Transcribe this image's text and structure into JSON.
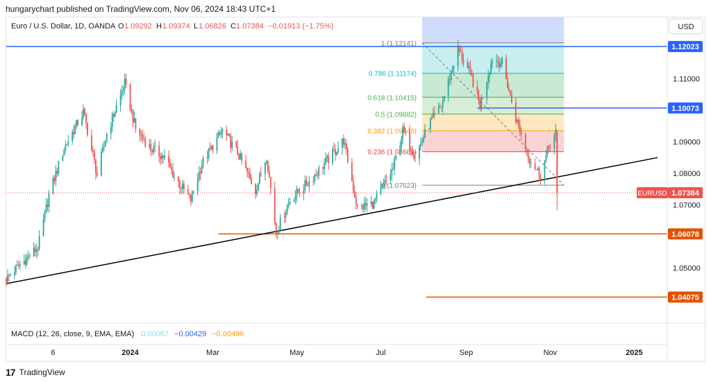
{
  "header": {
    "published": "hungarychart published on TradingView.com, Nov 06, 2024 18:43 UTC+1"
  },
  "legend": {
    "symbol": "Euro / U.S. Dollar, 1D, OANDA",
    "o_label": "O",
    "o": "1.09292",
    "h_label": "H",
    "h": "1.09374",
    "l_label": "L",
    "l": "1.06826",
    "c_label": "C",
    "c": "1.07384",
    "change": "−0.01913 (−1.75%)"
  },
  "currency_button": "USD",
  "macd": {
    "label": "MACD (12, 26, close, 9, EMA, EMA)",
    "v1": "0.00067",
    "v2": "−0.00429",
    "v3": "−0.00496",
    "colors": [
      "#80deea",
      "#2962ff",
      "#ff9800"
    ]
  },
  "footer": {
    "brand": "TradingView",
    "logo": "17"
  },
  "colors": {
    "up": "#26a69a",
    "down": "#ef5350",
    "blue_line": "#2962ff",
    "orange_line": "#e65100",
    "trend_line": "#000000",
    "price_line": "#ef5350"
  },
  "chart_data": {
    "type": "candlestick",
    "title": "Euro / U.S. Dollar, 1D, OANDA",
    "ylim": [
      1.0325,
      1.1295
    ],
    "y_ticks": [
      "1.11000",
      "1.10000",
      "1.09000",
      "1.08000",
      "1.07000",
      "1.05000"
    ],
    "x_ticks": [
      "6",
      "2024",
      "Mar",
      "May",
      "Jul",
      "Sep",
      "Nov",
      "2025"
    ],
    "x_tick_dates": [
      "2023-11-06",
      "2024-01-01",
      "2024-03-01",
      "2024-05-01",
      "2024-07-01",
      "2024-09-01",
      "2024-11-01",
      "2025-01-01"
    ],
    "x_range": [
      "2023-10-03",
      "2025-01-25"
    ],
    "last_date": "2024-11-06",
    "price_close_anchors": [
      [
        "2023-10-03",
        1.0465
      ],
      [
        "2023-10-13",
        1.051
      ],
      [
        "2023-10-26",
        1.0565
      ],
      [
        "2023-11-03",
        1.073
      ],
      [
        "2023-11-14",
        1.088
      ],
      [
        "2023-11-28",
        1.0995
      ],
      [
        "2023-12-08",
        1.0795
      ],
      [
        "2023-12-15",
        1.0925
      ],
      [
        "2023-12-28",
        1.1085
      ],
      [
        "2024-01-05",
        1.094
      ],
      [
        "2024-01-16",
        1.088
      ],
      [
        "2024-01-26",
        1.085
      ],
      [
        "2024-02-02",
        1.079
      ],
      [
        "2024-02-14",
        1.0715
      ],
      [
        "2024-02-22",
        1.083
      ],
      [
        "2024-03-08",
        1.0935
      ],
      [
        "2024-03-19",
        1.0865
      ],
      [
        "2024-04-01",
        1.0745
      ],
      [
        "2024-04-09",
        1.0855
      ],
      [
        "2024-04-16",
        1.0615
      ],
      [
        "2024-04-26",
        1.0715
      ],
      [
        "2024-05-10",
        1.0775
      ],
      [
        "2024-05-24",
        1.0845
      ],
      [
        "2024-06-04",
        1.0905
      ],
      [
        "2024-06-14",
        1.069
      ],
      [
        "2024-06-26",
        1.0705
      ],
      [
        "2024-07-10",
        1.0815
      ],
      [
        "2024-07-17",
        1.0935
      ],
      [
        "2024-07-26",
        1.0855
      ],
      [
        "2024-08-05",
        1.0955
      ],
      [
        "2024-08-14",
        1.1015
      ],
      [
        "2024-08-26",
        1.1195
      ],
      [
        "2024-09-05",
        1.1105
      ],
      [
        "2024-09-11",
        1.1015
      ],
      [
        "2024-09-20",
        1.1165
      ],
      [
        "2024-09-27",
        1.115
      ],
      [
        "2024-10-07",
        1.0975
      ],
      [
        "2024-10-17",
        1.0845
      ],
      [
        "2024-10-25",
        1.0795
      ],
      [
        "2024-10-31",
        1.0885
      ],
      [
        "2024-11-05",
        1.0929
      ],
      [
        "2024-11-06",
        1.07384
      ]
    ],
    "last_bar": {
      "date": "2024-11-06",
      "open": 1.09292,
      "high": 1.09374,
      "low": 1.06826,
      "close": 1.07384
    },
    "fib_retracement": {
      "date_from": "2024-07-31",
      "date_to": "2024-11-11",
      "levels": [
        {
          "ratio": "1",
          "label": "1 (1.12141)",
          "price": 1.12141,
          "fill": "#e0e0e0",
          "color": "#787b86"
        },
        {
          "ratio": "0.786",
          "label": "0.786 (1.11174)",
          "price": 1.11174,
          "fill": "#c9eef0",
          "color": "#00bcd4"
        },
        {
          "ratio": "0.618",
          "label": "0.618 (1.10415)",
          "price": 1.10415,
          "fill": "#c8e9d4",
          "color": "#4caf50"
        },
        {
          "ratio": "0.5",
          "label": "0.5 (1.09882)",
          "price": 1.09882,
          "fill": "#d6edd6",
          "color": "#4caf50"
        },
        {
          "ratio": "0.382",
          "label": "0.382 (1.09349)",
          "price": 1.09349,
          "fill": "#fde8c3",
          "color": "#ff9800"
        },
        {
          "ratio": "0.236",
          "label": "0.236 (1.08689)",
          "price": 1.08689,
          "fill": "#fbd3d3",
          "color": "#f23645"
        },
        {
          "ratio": "0",
          "label": "0 (1.07623)",
          "price": 1.07623,
          "fill": null,
          "color": "#787b86"
        }
      ],
      "top_fill": "#cfdcfd",
      "top_fill_price": 1.1295
    },
    "horizontal_levels": [
      {
        "price": 1.12023,
        "label": "1.12023",
        "color": "#2962ff",
        "date_from": "2023-10-03"
      },
      {
        "price": 1.10073,
        "label": "1.10073",
        "color": "#2962ff",
        "date_from": "2024-09-09"
      },
      {
        "price": 1.06078,
        "label": "1.06078",
        "color": "#e65100",
        "date_from": "2024-03-05"
      },
      {
        "price": 1.04075,
        "label": "1.04075",
        "color": "#e65100",
        "date_from": "2024-08-03"
      }
    ],
    "trend_line": {
      "from": [
        "2023-10-03",
        1.045
      ],
      "to": [
        "2025-01-18",
        1.085
      ]
    },
    "current_price": {
      "symbol": "EURUSD",
      "value": "1.07384",
      "price": 1.07384
    }
  }
}
